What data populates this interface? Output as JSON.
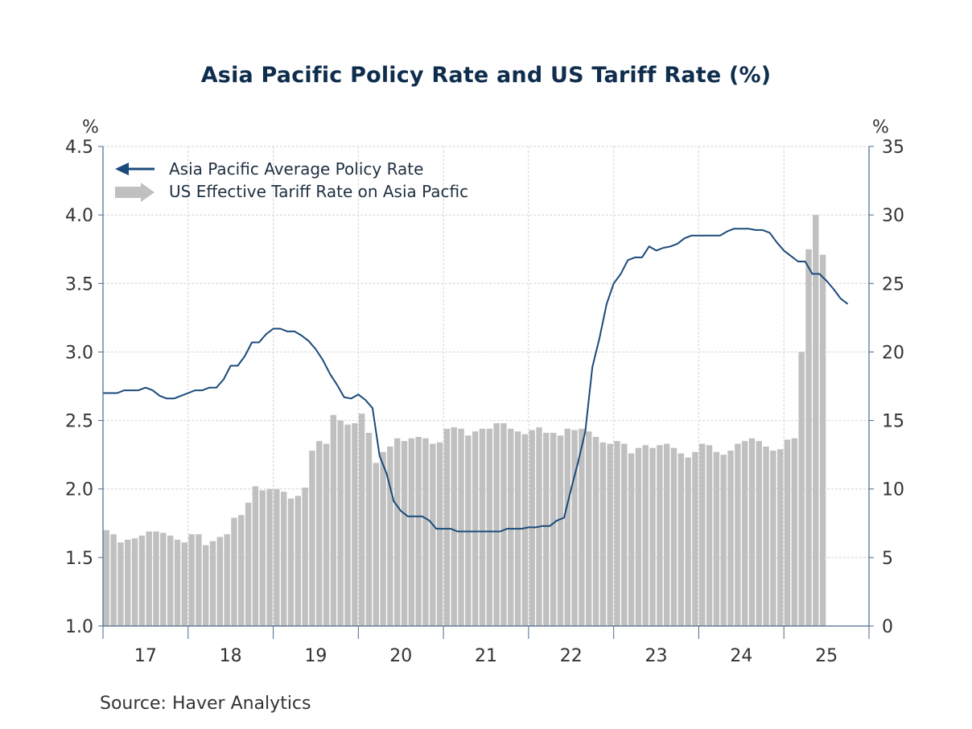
{
  "chart_data": {
    "type": "bar+line",
    "title": "Asia Pacific Policy Rate and US Tariff Rate (%)",
    "source": "Source:  Haver Analytics",
    "left_axis": {
      "unit_label": "%",
      "range": [
        1.0,
        4.5
      ],
      "ticks": [
        "1.0",
        "1.5",
        "2.0",
        "2.5",
        "3.0",
        "3.5",
        "4.0",
        "4.5"
      ]
    },
    "right_axis": {
      "unit_label": "%",
      "range": [
        0,
        35
      ],
      "ticks": [
        "0",
        "5",
        "10",
        "15",
        "20",
        "25",
        "30",
        "35"
      ]
    },
    "x_axis": {
      "start": 2017.0,
      "end": 2026.0,
      "tick_labels": [
        "17",
        "18",
        "19",
        "20",
        "21",
        "22",
        "23",
        "24",
        "25"
      ]
    },
    "grid": true,
    "legend_position": "top-left",
    "colors": {
      "policy": "#1b4a7a",
      "tariff": "#c0c0c0",
      "axis": "#4a6a8a",
      "grid": "#d4d4d4",
      "title": "#0f2d4d"
    },
    "series": [
      {
        "name": "Asia Pacific Average Policy Rate",
        "kind": "line",
        "axis": "left",
        "start": "2017-01",
        "values": [
          2.7,
          2.7,
          2.7,
          2.72,
          2.72,
          2.72,
          2.74,
          2.72,
          2.68,
          2.66,
          2.66,
          2.68,
          2.7,
          2.72,
          2.72,
          2.74,
          2.74,
          2.8,
          2.9,
          2.9,
          2.97,
          3.07,
          3.07,
          3.13,
          3.17,
          3.17,
          3.15,
          3.15,
          3.12,
          3.08,
          3.02,
          2.94,
          2.84,
          2.76,
          2.67,
          2.66,
          2.69,
          2.65,
          2.59,
          2.24,
          2.11,
          1.91,
          1.84,
          1.8,
          1.8,
          1.8,
          1.77,
          1.71,
          1.71,
          1.71,
          1.69,
          1.69,
          1.69,
          1.69,
          1.69,
          1.69,
          1.69,
          1.71,
          1.71,
          1.71,
          1.72,
          1.72,
          1.73,
          1.73,
          1.77,
          1.79,
          2.0,
          2.2,
          2.42,
          2.89,
          3.1,
          3.35,
          3.5,
          3.57,
          3.67,
          3.69,
          3.69,
          3.77,
          3.74,
          3.76,
          3.77,
          3.79,
          3.83,
          3.85,
          3.85,
          3.85,
          3.85,
          3.85,
          3.88,
          3.9,
          3.9,
          3.9,
          3.89,
          3.89,
          3.87,
          3.8,
          3.74,
          3.7,
          3.66,
          3.66,
          3.57,
          3.57,
          3.52,
          3.46,
          3.39,
          3.35
        ]
      },
      {
        "name": "US Effective Tariff Rate on Asia Pacfic",
        "kind": "bar",
        "axis": "right",
        "start": "2017-01",
        "values": [
          7.0,
          6.7,
          6.1,
          6.3,
          6.4,
          6.6,
          6.9,
          6.9,
          6.8,
          6.6,
          6.3,
          6.1,
          6.7,
          6.7,
          5.9,
          6.2,
          6.5,
          6.7,
          7.9,
          8.1,
          9.0,
          10.2,
          9.9,
          10.0,
          10.0,
          9.8,
          9.3,
          9.5,
          10.1,
          12.8,
          13.5,
          13.3,
          15.4,
          15.0,
          14.7,
          14.8,
          15.5,
          14.1,
          11.9,
          12.7,
          13.1,
          13.7,
          13.5,
          13.7,
          13.8,
          13.7,
          13.3,
          13.4,
          14.4,
          14.5,
          14.4,
          13.9,
          14.2,
          14.4,
          14.4,
          14.8,
          14.8,
          14.4,
          14.2,
          14.0,
          14.3,
          14.5,
          14.1,
          14.1,
          13.9,
          14.4,
          14.3,
          14.4,
          14.2,
          13.8,
          13.4,
          13.3,
          13.5,
          13.3,
          12.6,
          13.0,
          13.2,
          13.0,
          13.2,
          13.3,
          13.0,
          12.6,
          12.3,
          12.7,
          13.3,
          13.2,
          12.7,
          12.5,
          12.8,
          13.3,
          13.5,
          13.7,
          13.5,
          13.1,
          12.8,
          12.9,
          13.6,
          13.7,
          20.0,
          27.5,
          30.0,
          27.1
        ]
      }
    ]
  }
}
